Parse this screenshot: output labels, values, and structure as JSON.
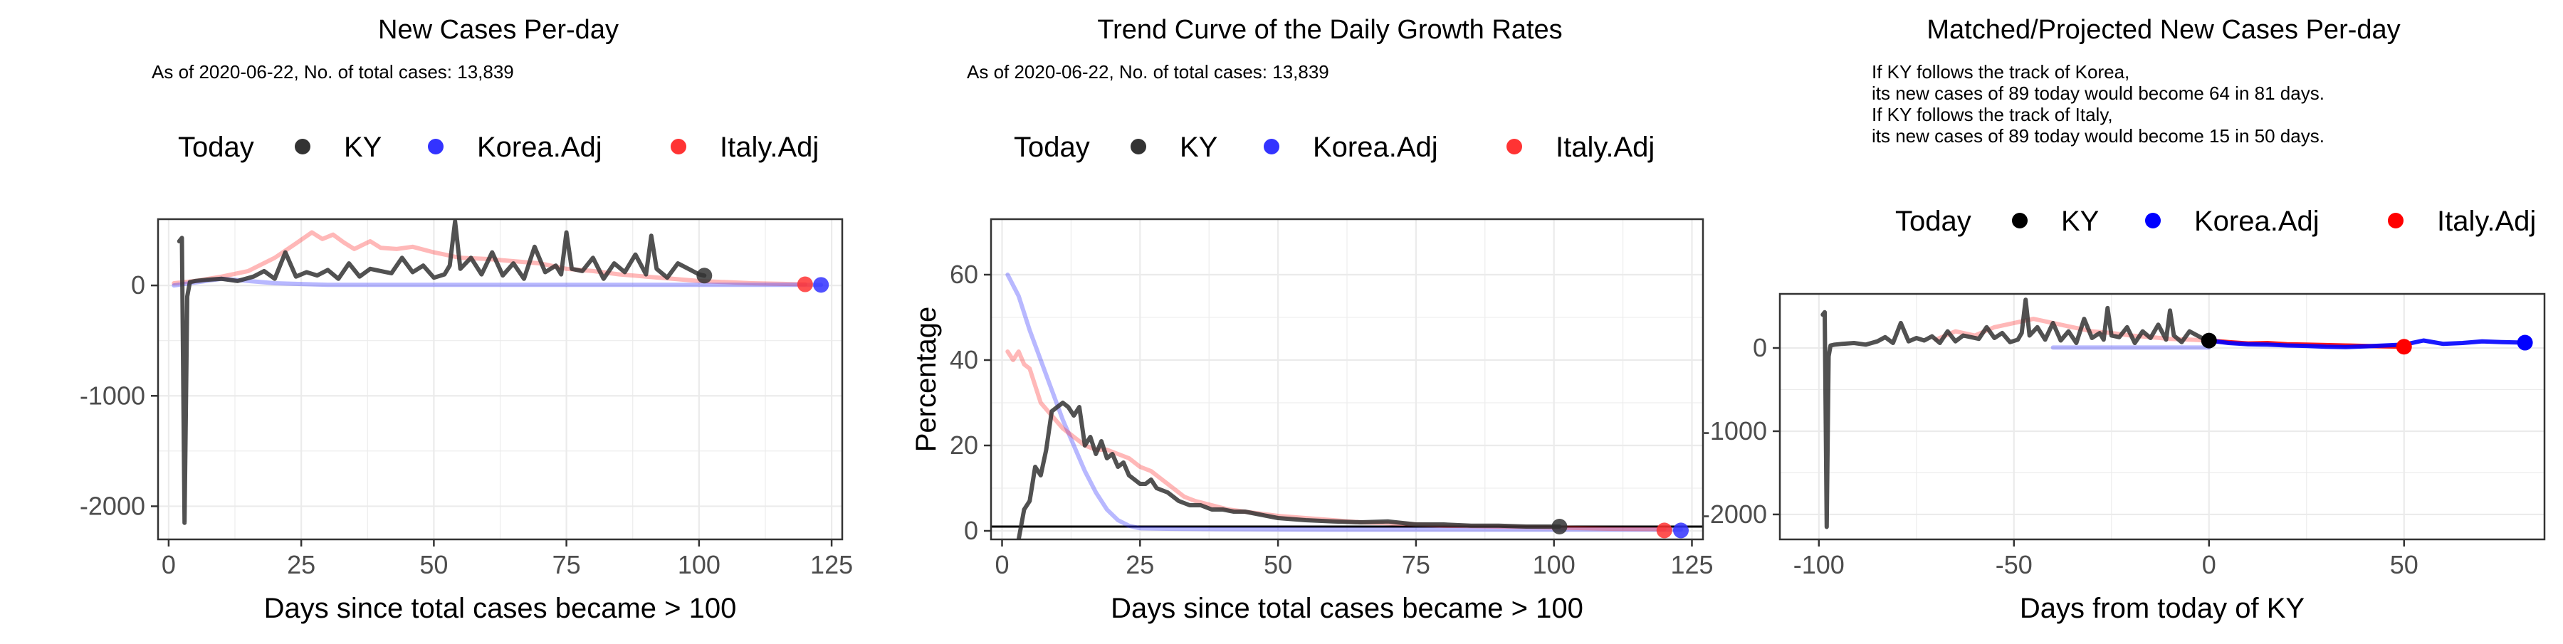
{
  "colors": {
    "today": "#000000",
    "KY": "#333333",
    "Korea.Adj": "#3333ff",
    "Italy.Adj": "#ff3333",
    "grid": "#ebebeb",
    "panel_border": "#333333"
  },
  "chart_data": [
    {
      "type": "line",
      "title": "New Cases Per-day",
      "subtitle": "As of 2020-06-22, No. of total cases: 13,839",
      "xlabel": "Days since total cases became > 100",
      "ylabel": "",
      "xlim": [
        -2,
        127
      ],
      "ylim": [
        -2300,
        600
      ],
      "xticks": [
        0,
        25,
        50,
        75,
        100,
        125
      ],
      "yticks": [
        0,
        -1000,
        -2000
      ],
      "ytick_labels": [
        "0",
        "-1000",
        "-2000"
      ],
      "grid": true,
      "legend_position": "top",
      "legend": {
        "title": "Today",
        "entries": [
          {
            "label": "KY",
            "color": "#333333"
          },
          {
            "label": "Korea.Adj",
            "color": "#3333ff"
          },
          {
            "label": "Italy.Adj",
            "color": "#ff3333"
          }
        ]
      },
      "series": [
        {
          "name": "Italy.Adj",
          "color": "#ff3333",
          "opacity": 0.35,
          "x": [
            1,
            5,
            10,
            15,
            20,
            24,
            27,
            29,
            31,
            33,
            35,
            38,
            40,
            43,
            46,
            50,
            55,
            60,
            65,
            70,
            75,
            80,
            85,
            90,
            95,
            100,
            105,
            110,
            115,
            120
          ],
          "y": [
            20,
            40,
            80,
            130,
            250,
            380,
            480,
            420,
            460,
            390,
            330,
            400,
            340,
            330,
            350,
            300,
            250,
            240,
            220,
            200,
            150,
            130,
            100,
            80,
            60,
            40,
            30,
            20,
            15,
            10
          ]
        },
        {
          "name": "Korea.Adj",
          "color": "#3333ff",
          "opacity": 0.35,
          "x": [
            1,
            10,
            20,
            30,
            40,
            60,
            80,
            100,
            123
          ],
          "y": [
            0,
            60,
            20,
            5,
            5,
            5,
            5,
            5,
            5
          ]
        },
        {
          "name": "KY",
          "color": "#333333",
          "opacity": 0.85,
          "x": [
            2,
            2.5,
            3,
            3.5,
            4,
            5,
            7,
            10,
            13,
            16,
            18,
            20,
            22,
            24,
            26,
            28,
            30,
            32,
            34,
            36,
            38,
            40,
            42,
            44,
            46,
            48,
            50,
            52,
            53,
            54,
            55,
            57,
            59,
            61,
            63,
            65,
            67,
            69,
            71,
            73,
            74,
            75,
            76,
            78,
            80,
            82,
            84,
            86,
            88,
            90,
            91,
            92,
            94,
            96,
            98,
            100,
            101
          ],
          "y": [
            400,
            430,
            -2150,
            -100,
            30,
            40,
            50,
            60,
            40,
            80,
            130,
            60,
            300,
            80,
            120,
            90,
            140,
            60,
            200,
            80,
            150,
            130,
            110,
            250,
            120,
            180,
            70,
            100,
            180,
            580,
            150,
            250,
            100,
            300,
            90,
            200,
            60,
            350,
            120,
            180,
            100,
            480,
            150,
            130,
            250,
            60,
            200,
            120,
            280,
            100,
            450,
            150,
            70,
            200,
            150,
            100,
            89
          ]
        }
      ],
      "points": [
        {
          "series": "KY",
          "x": 101,
          "y": 89
        },
        {
          "series": "Italy.Adj",
          "x": 120,
          "y": 10
        },
        {
          "series": "Korea.Adj",
          "x": 123,
          "y": 5
        }
      ]
    },
    {
      "type": "line",
      "title": "Trend Curve of the Daily Growth Rates",
      "subtitle": "As of 2020-06-22, No. of total cases: 13,839",
      "xlabel": "Days since total cases became > 100",
      "ylabel": "Percentage",
      "xlim": [
        -2,
        127
      ],
      "ylim": [
        -2,
        73
      ],
      "xticks": [
        0,
        25,
        50,
        75,
        100,
        125
      ],
      "yticks": [
        0,
        20,
        40,
        60
      ],
      "ytick_labels": [
        "0",
        "20",
        "40",
        "60"
      ],
      "grid": true,
      "hline": 1,
      "legend_position": "top",
      "legend": {
        "title": "Today",
        "entries": [
          {
            "label": "KY",
            "color": "#333333"
          },
          {
            "label": "Korea.Adj",
            "color": "#3333ff"
          },
          {
            "label": "Italy.Adj",
            "color": "#ff3333"
          }
        ]
      },
      "series": [
        {
          "name": "Korea.Adj",
          "color": "#3333ff",
          "opacity": 0.35,
          "x": [
            1,
            3,
            5,
            7,
            9,
            11,
            13,
            15,
            17,
            19,
            21,
            23,
            25,
            30,
            40,
            60,
            80,
            100,
            123
          ],
          "y": [
            60,
            55,
            47,
            40,
            33,
            26,
            20,
            14,
            9,
            5,
            2.5,
            1.2,
            0.6,
            0.5,
            0.4,
            0.3,
            0.3,
            0.3,
            0.3
          ]
        },
        {
          "name": "Italy.Adj",
          "color": "#ff3333",
          "opacity": 0.35,
          "x": [
            1,
            2,
            3,
            4,
            5,
            7,
            9,
            11,
            13,
            15,
            17,
            19,
            21,
            23,
            25,
            27,
            29,
            31,
            33,
            35,
            38,
            41,
            44,
            47,
            50,
            55,
            60,
            65,
            70,
            75,
            80,
            90,
            100,
            110,
            120
          ],
          "y": [
            42,
            40,
            42,
            39,
            38,
            30,
            27,
            24,
            22,
            20,
            19,
            19,
            18,
            17,
            15,
            14,
            12,
            10,
            8,
            7,
            6,
            5,
            4.5,
            4,
            3.5,
            3,
            2.5,
            2,
            1.8,
            1.5,
            1.2,
            1,
            0.8,
            0.5,
            0.4
          ]
        },
        {
          "name": "KY",
          "color": "#333333",
          "opacity": 0.85,
          "x": [
            3,
            4,
            5,
            6,
            7,
            8,
            9,
            10,
            11,
            12,
            13,
            14,
            15,
            16,
            17,
            18,
            19,
            20,
            21,
            22,
            23,
            24,
            25,
            26,
            27,
            28,
            30,
            32,
            34,
            36,
            38,
            40,
            42,
            44,
            46,
            48,
            50,
            55,
            60,
            65,
            70,
            75,
            80,
            85,
            90,
            95,
            101
          ],
          "y": [
            -2,
            5,
            7,
            15,
            13,
            19,
            28,
            29,
            30,
            29,
            27,
            29,
            20,
            22,
            18,
            21,
            17,
            18,
            15,
            16,
            13,
            12,
            11,
            11,
            12,
            10,
            9,
            7,
            6,
            6,
            5,
            5,
            4.5,
            4.5,
            4,
            3.5,
            3,
            2.5,
            2.2,
            2,
            2.2,
            1.5,
            1.5,
            1.2,
            1.2,
            1,
            1
          ]
        }
      ],
      "points": [
        {
          "series": "KY",
          "x": 101,
          "y": 1
        },
        {
          "series": "Italy.Adj",
          "x": 120,
          "y": 0.1
        },
        {
          "series": "Korea.Adj",
          "x": 123,
          "y": 0.1
        }
      ]
    },
    {
      "type": "line",
      "title": "Matched/Projected New Cases Per-day",
      "subtitle_lines": [
        "If KY follows the track of Korea,",
        "its new cases of 89 today would become 64 in 81 days.",
        "If KY follows the track of Italy,",
        "its new cases of 89 today would become 15 in 50 days."
      ],
      "xlabel": "Days from today of KY",
      "ylabel": "",
      "xlim": [
        -110,
        86
      ],
      "ylim": [
        -2300,
        650
      ],
      "xticks": [
        -100,
        -50,
        0,
        50
      ],
      "xtick_labels": [
        "-100",
        "-50",
        "0",
        "50"
      ],
      "yticks": [
        0,
        -1000,
        -2000
      ],
      "ytick_labels": [
        "0",
        "-1000",
        "-2000"
      ],
      "grid": true,
      "legend_position": "top",
      "legend": {
        "title": "Today",
        "entries": [
          {
            "label": "KY",
            "color": "#000000"
          },
          {
            "label": "Korea.Adj",
            "color": "#0000ff"
          },
          {
            "label": "Italy.Adj",
            "color": "#ff0000"
          }
        ]
      },
      "series": [
        {
          "name": "Italy.Adj",
          "color": "#ff3333",
          "opacity": 0.35,
          "x": [
            -70,
            -65,
            -60,
            -55,
            -50,
            -45,
            -40,
            -35,
            -30,
            -25,
            -20,
            -15,
            -10,
            -5,
            0
          ],
          "y": [
            100,
            200,
            150,
            250,
            300,
            350,
            300,
            250,
            200,
            180,
            150,
            130,
            110,
            100,
            90
          ]
        },
        {
          "name": "Korea.Adj",
          "color": "#3333ff",
          "opacity": 0.35,
          "x": [
            -40,
            -30,
            -20,
            -10,
            0
          ],
          "y": [
            5,
            5,
            5,
            5,
            5
          ]
        },
        {
          "name": "KY",
          "color": "#333333",
          "opacity": 0.85,
          "x": [
            -99,
            -98.5,
            -98,
            -97.5,
            -97,
            -96,
            -94,
            -91,
            -88,
            -85,
            -83,
            -81,
            -79,
            -77,
            -75,
            -73,
            -71,
            -69,
            -67,
            -65,
            -63,
            -61,
            -59,
            -57,
            -55,
            -53,
            -51,
            -49,
            -48,
            -47,
            -46,
            -44,
            -42,
            -40,
            -38,
            -36,
            -34,
            -32,
            -30,
            -28,
            -27,
            -26,
            -25,
            -23,
            -21,
            -19,
            -17,
            -15,
            -13,
            -11,
            -10,
            -9,
            -7,
            -5,
            -3,
            -1,
            0
          ],
          "y": [
            400,
            430,
            -2150,
            -100,
            30,
            40,
            50,
            60,
            40,
            80,
            130,
            60,
            300,
            80,
            120,
            90,
            140,
            60,
            200,
            80,
            150,
            130,
            110,
            250,
            120,
            180,
            70,
            100,
            180,
            580,
            150,
            250,
            100,
            300,
            90,
            200,
            60,
            350,
            120,
            180,
            100,
            480,
            150,
            130,
            250,
            60,
            200,
            120,
            280,
            100,
            450,
            150,
            70,
            200,
            150,
            100,
            89
          ]
        },
        {
          "name": "Italy.Adj (projected)",
          "color": "#ff0000",
          "opacity": 0.9,
          "x": [
            0,
            5,
            10,
            15,
            20,
            25,
            30,
            35,
            40,
            45,
            50
          ],
          "y": [
            89,
            70,
            55,
            60,
            45,
            40,
            35,
            30,
            25,
            20,
            15
          ]
        },
        {
          "name": "Korea.Adj (projected)",
          "color": "#0000ff",
          "opacity": 0.9,
          "x": [
            0,
            5,
            10,
            15,
            20,
            25,
            30,
            35,
            40,
            45,
            50,
            55,
            60,
            65,
            70,
            75,
            81
          ],
          "y": [
            89,
            60,
            45,
            40,
            30,
            25,
            15,
            10,
            20,
            30,
            40,
            90,
            50,
            60,
            80,
            70,
            64
          ]
        }
      ],
      "points": [
        {
          "series": "KY",
          "x": 0,
          "y": 89
        },
        {
          "series": "Italy.Adj",
          "x": 50,
          "y": 15
        },
        {
          "series": "Korea.Adj",
          "x": 81,
          "y": 64
        }
      ]
    }
  ]
}
